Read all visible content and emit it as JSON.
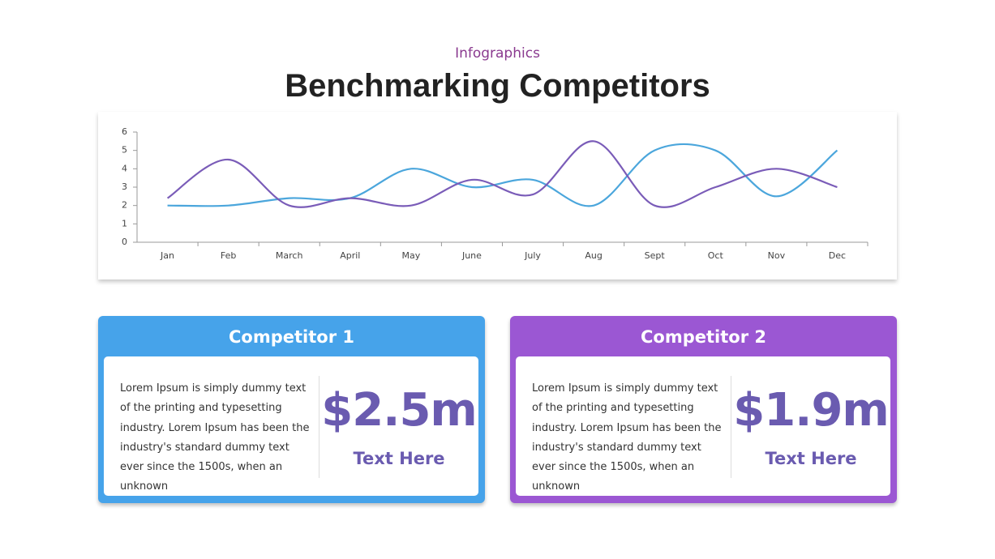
{
  "header": {
    "subtitle": "Infographics",
    "title": "Benchmarking Competitors"
  },
  "chart_data": {
    "type": "line",
    "categories": [
      "Jan",
      "Feb",
      "March",
      "April",
      "May",
      "June",
      "July",
      "Aug",
      "Sept",
      "Oct",
      "Nov",
      "Dec"
    ],
    "series": [
      {
        "color": "#4ba6dc",
        "values": [
          2,
          2,
          2.4,
          2.4,
          4,
          3,
          3.4,
          2,
          5,
          5,
          2.5,
          5
        ]
      },
      {
        "color": "#7a5cb8",
        "values": [
          2.4,
          4.5,
          2,
          2.4,
          2,
          3.4,
          2.6,
          5.5,
          2,
          3,
          4,
          3
        ]
      }
    ],
    "ylim": [
      0,
      6
    ],
    "yticks": [
      0,
      1,
      2,
      3,
      4,
      5,
      6
    ],
    "smooth": true
  },
  "cards": [
    {
      "title": "Competitor 1",
      "color": "#46a3ea",
      "text": "Lorem Ipsum is simply dummy text of the printing and typesetting industry. Lorem Ipsum has been the industry's standard dummy text ever since the 1500s,  when an unknown",
      "value": "$2.5m",
      "caption": "Text Here"
    },
    {
      "title": "Competitor 2",
      "color": "#9b57d3",
      "text": "Lorem Ipsum is simply dummy text of the printing and typesetting industry. Lorem Ipsum has been the industry's standard dummy text ever since the 1500s,  when an unknown",
      "value": "$1.9m",
      "caption": "Text Here"
    }
  ]
}
